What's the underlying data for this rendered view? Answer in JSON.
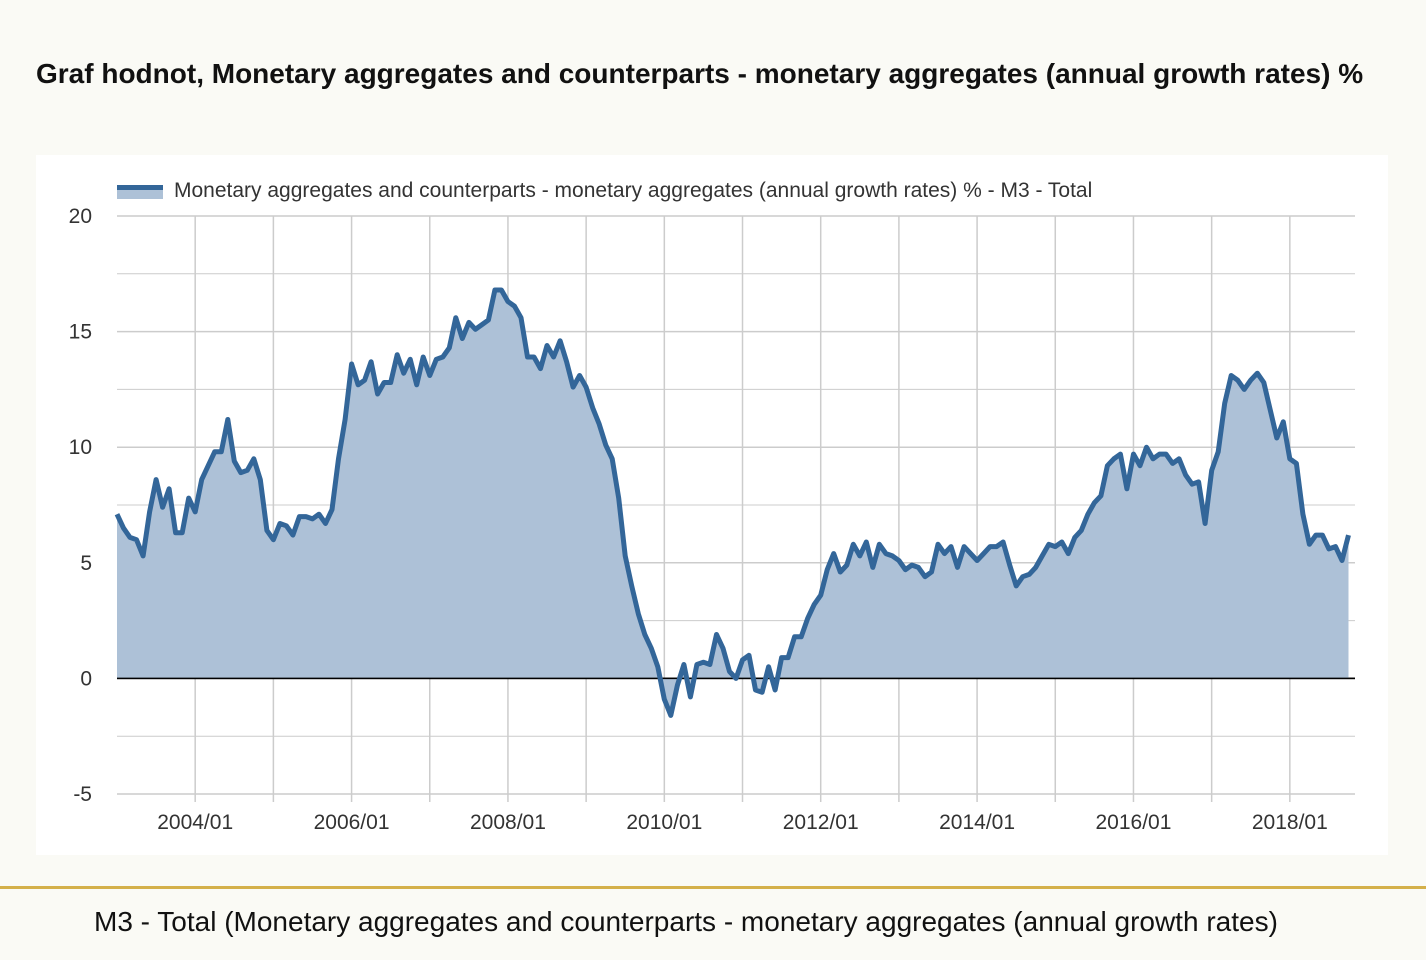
{
  "page": {
    "title": "Graf hodnot, Monetary aggregates and counterparts - monetary aggregates (annual growth rates) %",
    "caption": "M3 - Total (Monetary aggregates and counterparts - monetary aggregates (annual growth rates)"
  },
  "colors": {
    "line": "#336699",
    "area": "#adc1d7",
    "grid": "#cccccc",
    "divider": "#d4b04a"
  },
  "chart_data": {
    "type": "area",
    "title": "",
    "xlabel": "",
    "ylabel": "",
    "legend_position": "top-left",
    "grid": true,
    "ylim": [
      -5,
      20
    ],
    "yticks": [
      -5,
      0,
      5,
      10,
      15,
      20
    ],
    "xlim": [
      "2003-01",
      "2018-11"
    ],
    "xticks": [
      "2004/01",
      "2006/01",
      "2008/01",
      "2010/01",
      "2012/01",
      "2014/01",
      "2016/01",
      "2018/01"
    ],
    "series": [
      {
        "name": "Monetary aggregates and counterparts - monetary aggregates (annual growth rates) % - M3 - Total",
        "start": "2003-01",
        "frequency": "monthly",
        "values": [
          7.1,
          6.5,
          6.1,
          6.0,
          5.3,
          7.2,
          8.6,
          7.4,
          8.2,
          6.3,
          6.3,
          7.8,
          7.2,
          8.6,
          9.2,
          9.8,
          9.8,
          11.2,
          9.4,
          8.9,
          9.0,
          9.5,
          8.6,
          6.4,
          6.0,
          6.7,
          6.6,
          6.2,
          7.0,
          7.0,
          6.9,
          7.1,
          6.7,
          7.3,
          9.5,
          11.2,
          13.6,
          12.7,
          12.9,
          13.7,
          12.3,
          12.8,
          12.8,
          14.0,
          13.2,
          13.8,
          12.7,
          13.9,
          13.1,
          13.8,
          13.9,
          14.3,
          15.6,
          14.7,
          15.4,
          15.1,
          15.3,
          15.5,
          16.8,
          16.8,
          16.3,
          16.1,
          15.6,
          13.9,
          13.9,
          13.4,
          14.4,
          13.9,
          14.6,
          13.7,
          12.6,
          13.1,
          12.6,
          11.7,
          11.0,
          10.1,
          9.5,
          7.8,
          5.3,
          4.0,
          2.8,
          1.9,
          1.3,
          0.5,
          -0.9,
          -1.6,
          -0.3,
          0.6,
          -0.8,
          0.6,
          0.7,
          0.6,
          1.9,
          1.3,
          0.3,
          0.0,
          0.8,
          1.0,
          -0.5,
          -0.6,
          0.5,
          -0.5,
          0.9,
          0.9,
          1.8,
          1.8,
          2.6,
          3.2,
          3.6,
          4.7,
          5.4,
          4.6,
          4.9,
          5.8,
          5.3,
          5.9,
          4.8,
          5.8,
          5.4,
          5.3,
          5.1,
          4.7,
          4.9,
          4.8,
          4.4,
          4.6,
          5.8,
          5.4,
          5.7,
          4.8,
          5.7,
          5.4,
          5.1,
          5.4,
          5.7,
          5.7,
          5.9,
          4.9,
          4.0,
          4.4,
          4.5,
          4.8,
          5.3,
          5.8,
          5.7,
          5.9,
          5.4,
          6.1,
          6.4,
          7.1,
          7.6,
          7.9,
          9.2,
          9.5,
          9.7,
          8.2,
          9.7,
          9.2,
          10.0,
          9.5,
          9.7,
          9.7,
          9.3,
          9.5,
          8.8,
          8.4,
          8.5,
          6.7,
          9.0,
          9.8,
          11.9,
          13.1,
          12.9,
          12.5,
          12.9,
          13.2,
          12.8,
          11.6,
          10.4,
          11.1,
          9.5,
          9.3,
          7.1,
          5.8,
          6.2,
          6.2,
          5.6,
          5.7,
          5.1,
          6.2
        ]
      }
    ]
  }
}
